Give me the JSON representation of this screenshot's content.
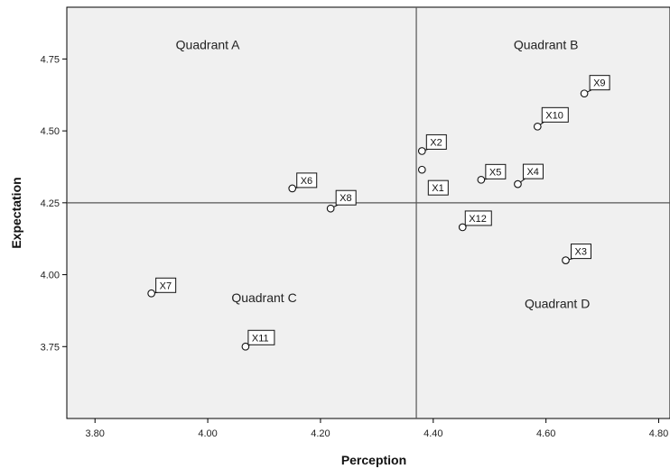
{
  "chart_data": {
    "type": "scatter",
    "xlabel": "Perception",
    "ylabel": "Expectation",
    "xlim": [
      3.75,
      4.82
    ],
    "ylim": [
      3.5,
      4.93
    ],
    "x_ticks": [
      3.8,
      4.0,
      4.2,
      4.4,
      4.6,
      4.8
    ],
    "x_tick_labels": [
      "3.80",
      "4.00",
      "4.20",
      "4.40",
      "4.60",
      "4.80"
    ],
    "y_ticks": [
      3.75,
      4.0,
      4.25,
      4.5,
      4.75
    ],
    "y_tick_labels": [
      "3.75",
      "4.00",
      "4.25",
      "4.50",
      "4.75"
    ],
    "reference_lines": {
      "x": 4.37,
      "y": 4.25
    },
    "quadrant_labels": [
      {
        "text": "Quadrant A",
        "x": 4.0,
        "y": 4.8
      },
      {
        "text": "Quadrant B",
        "x": 4.6,
        "y": 4.8
      },
      {
        "text": "Quadrant C",
        "x": 4.1,
        "y": 3.92
      },
      {
        "text": "Quadrant D",
        "x": 4.62,
        "y": 3.9
      }
    ],
    "points": [
      {
        "label": "X1",
        "x": 4.38,
        "y": 4.365
      },
      {
        "label": "X2",
        "x": 4.38,
        "y": 4.43
      },
      {
        "label": "X3",
        "x": 4.635,
        "y": 4.05
      },
      {
        "label": "X4",
        "x": 4.55,
        "y": 4.315
      },
      {
        "label": "X5",
        "x": 4.485,
        "y": 4.33
      },
      {
        "label": "X6",
        "x": 4.15,
        "y": 4.3
      },
      {
        "label": "X7",
        "x": 3.9,
        "y": 3.935
      },
      {
        "label": "X8",
        "x": 4.218,
        "y": 4.23
      },
      {
        "label": "X9",
        "x": 4.668,
        "y": 4.63
      },
      {
        "label": "X10",
        "x": 4.585,
        "y": 4.515
      },
      {
        "label": "X11",
        "x": 4.067,
        "y": 3.75
      },
      {
        "label": "X12",
        "x": 4.452,
        "y": 4.165
      }
    ],
    "colors": {
      "plot_background": "#f0f0f0",
      "frame": "#000000",
      "reference_line": "#555555",
      "marker_stroke": "#111111",
      "marker_fill": "#ffffff"
    },
    "grid": false
  }
}
